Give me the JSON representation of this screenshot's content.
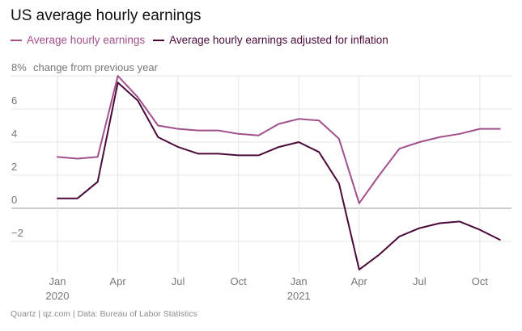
{
  "chart_data": {
    "type": "line",
    "title": "US average hourly earnings",
    "ylabel": "change from previous year",
    "source": "Quartz | qz.com | Data: Bureau of Labor Statistics",
    "ylim": [
      -3.5,
      8
    ],
    "yticks": [
      {
        "value": 8,
        "label": "8%"
      },
      {
        "value": 6,
        "label": "6"
      },
      {
        "value": 4,
        "label": "4"
      },
      {
        "value": 2,
        "label": "2"
      },
      {
        "value": 0,
        "label": "0"
      },
      {
        "value": -2,
        "label": "−2"
      }
    ],
    "xticks": [
      {
        "index": 0,
        "month": "Jan",
        "year": "2020"
      },
      {
        "index": 3,
        "month": "Apr",
        "year": ""
      },
      {
        "index": 6,
        "month": "Jul",
        "year": ""
      },
      {
        "index": 9,
        "month": "Oct",
        "year": ""
      },
      {
        "index": 12,
        "month": "Jan",
        "year": "2021"
      },
      {
        "index": 15,
        "month": "Apr",
        "year": ""
      },
      {
        "index": 18,
        "month": "Jul",
        "year": ""
      },
      {
        "index": 21,
        "month": "Oct",
        "year": ""
      }
    ],
    "x": [
      "Jan 2020",
      "Feb 2020",
      "Mar 2020",
      "Apr 2020",
      "May 2020",
      "Jun 2020",
      "Jul 2020",
      "Aug 2020",
      "Sep 2020",
      "Oct 2020",
      "Nov 2020",
      "Dec 2020",
      "Jan 2021",
      "Feb 2021",
      "Mar 2021",
      "Apr 2021",
      "May 2021",
      "Jun 2021",
      "Jul 2021",
      "Aug 2021",
      "Sep 2021",
      "Oct 2021",
      "Nov 2021"
    ],
    "grid": true,
    "legend_position": "top-left",
    "series": [
      {
        "name": "Average hourly earnings",
        "color": "#a24f8c",
        "values": [
          3.1,
          3.0,
          3.1,
          8.0,
          6.7,
          5.0,
          4.8,
          4.7,
          4.7,
          4.5,
          4.4,
          5.1,
          5.4,
          5.3,
          4.2,
          0.3,
          2.0,
          3.6,
          4.0,
          4.3,
          4.5,
          4.8,
          4.8
        ]
      },
      {
        "name": "Average hourly earnings adjusted for inflation",
        "color": "#4a0a3a",
        "values": [
          0.6,
          0.6,
          1.6,
          7.6,
          6.5,
          4.3,
          3.7,
          3.3,
          3.3,
          3.2,
          3.2,
          3.7,
          4.0,
          3.4,
          1.5,
          -3.7,
          -2.8,
          -1.7,
          -1.2,
          -0.9,
          -0.8,
          -1.3,
          -1.9
        ]
      }
    ]
  }
}
